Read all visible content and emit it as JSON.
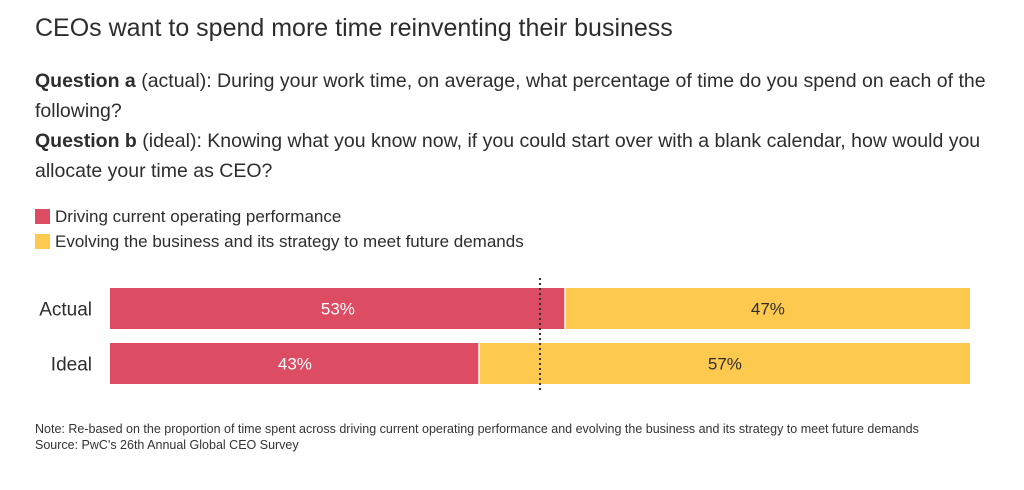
{
  "title": "CEOs want to spend more time reinventing their business",
  "questions": {
    "a_label": "Question a",
    "a_text": " (actual): During your work time, on average, what percentage of time do you spend on each of the following?",
    "b_label": "Question b",
    "b_text": " (ideal): Knowing what you know now, if you could start over with a blank calendar, how would you allocate your time as CEO?"
  },
  "colors": {
    "current": "#dc4c63",
    "future": "#fdc94f",
    "divider": "#333333"
  },
  "chart_data": {
    "type": "bar",
    "orientation": "horizontal",
    "stacked": true,
    "categories": [
      "Actual",
      "Ideal"
    ],
    "series": [
      {
        "name": "Driving current operating performance",
        "values": [
          53,
          43
        ],
        "labels": [
          "53%",
          "43%"
        ]
      },
      {
        "name": "Evolving the business and its strategy to meet future demands",
        "values": [
          47,
          57
        ],
        "labels": [
          "47%",
          "57%"
        ]
      }
    ],
    "xlim": [
      0,
      100
    ],
    "reference_line": 50,
    "legend": "top-left",
    "grid": false
  },
  "note": "Note: Re-based on the proportion of time spent across driving current operating performance and evolving the business and its strategy to meet future demands",
  "source": "Source: PwC's 26th Annual Global CEO Survey"
}
